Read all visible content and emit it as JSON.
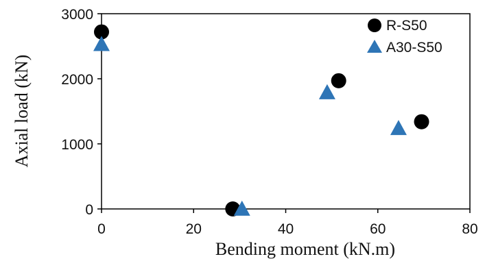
{
  "chart_data": {
    "type": "scatter",
    "title": "",
    "xlabel": "Bending moment (kN.m)",
    "ylabel": "Axial load (kN)",
    "xlim": [
      0,
      80
    ],
    "ylim": [
      0,
      3000
    ],
    "xticks": [
      "0",
      "20",
      "40",
      "60",
      "80"
    ],
    "yticks": [
      "0",
      "1000",
      "2000",
      "3000"
    ],
    "grid": false,
    "legend_position": "top-right",
    "series": [
      {
        "name": "R-S50",
        "marker": "circle",
        "color": "#000000",
        "points": [
          {
            "x": 0,
            "y": 2720
          },
          {
            "x": 28.5,
            "y": 0
          },
          {
            "x": 51.5,
            "y": 1970
          },
          {
            "x": 69.5,
            "y": 1340
          }
        ]
      },
      {
        "name": "A30-S50",
        "marker": "triangle",
        "color": "#2E75B6",
        "points": [
          {
            "x": 0,
            "y": 2530
          },
          {
            "x": 30.5,
            "y": 0
          },
          {
            "x": 49,
            "y": 1790
          },
          {
            "x": 64.5,
            "y": 1240
          }
        ]
      }
    ]
  }
}
